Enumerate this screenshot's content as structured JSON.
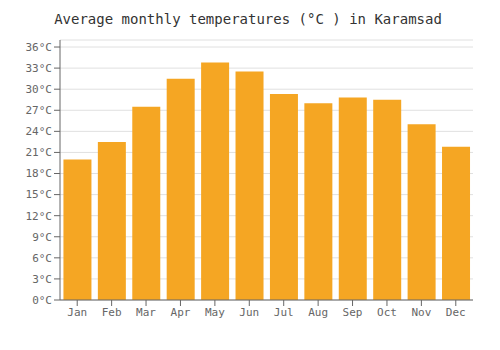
{
  "chart_data": {
    "type": "bar",
    "title": "Average monthly temperatures (°C ) in Karamsad",
    "categories": [
      "Jan",
      "Feb",
      "Mar",
      "Apr",
      "May",
      "Jun",
      "Jul",
      "Aug",
      "Sep",
      "Oct",
      "Nov",
      "Dec"
    ],
    "values": [
      20.0,
      22.5,
      27.5,
      31.5,
      33.8,
      32.5,
      29.3,
      28.0,
      28.8,
      28.5,
      25.0,
      21.8
    ],
    "color": "#F5A623",
    "ylim": [
      0,
      37
    ],
    "yticks": [
      {
        "value": 0,
        "label": "0°C"
      },
      {
        "value": 3,
        "label": "3°C"
      },
      {
        "value": 6,
        "label": "6°C"
      },
      {
        "value": 9,
        "label": "9°C"
      },
      {
        "value": 12,
        "label": "12°C"
      },
      {
        "value": 15,
        "label": "15°C"
      },
      {
        "value": 18,
        "label": "18°C"
      },
      {
        "value": 21,
        "label": "21°C"
      },
      {
        "value": 24,
        "label": "24°C"
      },
      {
        "value": 27,
        "label": "27°C"
      },
      {
        "value": 30,
        "label": "30°C"
      },
      {
        "value": 33,
        "label": "33°C"
      },
      {
        "value": 36,
        "label": "36°C"
      }
    ],
    "grid": true
  }
}
